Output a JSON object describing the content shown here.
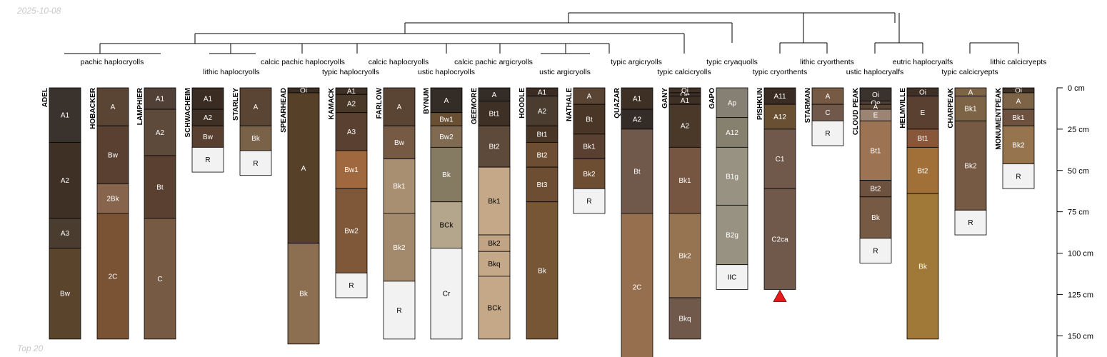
{
  "header": {
    "date": "2025-10-08"
  },
  "footer": {
    "label": "Top 20"
  },
  "dendrogram": {
    "taxa": [
      "pachic haplocryolls",
      "lithic haplocryolls",
      "calcic pachic haplocryolls",
      "typic haplocryolls",
      "calcic haplocryolls",
      "ustic haplocryolls",
      "calcic pachic argicryolls",
      "ustic argicryolls",
      "typic argicryolls",
      "typic calcicryolls",
      "typic cryaquolls",
      "typic cryorthents",
      "lithic cryorthents",
      "ustic haplocryalfs",
      "eutric haplocryalfs",
      "typic calcicryepts",
      "lithic calcicryepts"
    ]
  },
  "axis": {
    "unit": "cm",
    "ticks": [
      "0 cm",
      "25 cm",
      "50 cm",
      "75 cm",
      "100 cm",
      "125 cm",
      "150 cm"
    ],
    "tick_values": [
      0,
      25,
      50,
      75,
      100,
      125,
      150
    ]
  },
  "profiles": [
    {
      "name": "ADEL",
      "horizons": [
        {
          "label": "A1",
          "top": 0,
          "bottom": 33,
          "color": "#3a322c"
        },
        {
          "label": "A2",
          "top": 33,
          "bottom": 79,
          "color": "#3e3024"
        },
        {
          "label": "A3",
          "top": 79,
          "bottom": 97,
          "color": "#4a3c2e"
        },
        {
          "label": "Bw",
          "top": 97,
          "bottom": 152,
          "color": "#5a452c"
        }
      ]
    },
    {
      "name": "HOBACKER",
      "horizons": [
        {
          "label": "A",
          "top": 0,
          "bottom": 23,
          "color": "#5a4434"
        },
        {
          "label": "Bw",
          "top": 23,
          "bottom": 58,
          "color": "#5a4030"
        },
        {
          "label": "2Bk",
          "top": 58,
          "bottom": 76,
          "color": "#86654c"
        },
        {
          "label": "2C",
          "top": 76,
          "bottom": 152,
          "color": "#7a5234"
        }
      ]
    },
    {
      "name": "LAMPHIER",
      "horizons": [
        {
          "label": "A1",
          "top": 0,
          "bottom": 13,
          "color": "#504036"
        },
        {
          "label": "A2",
          "top": 13,
          "bottom": 41,
          "color": "#5e4a3a"
        },
        {
          "label": "Bt",
          "top": 41,
          "bottom": 79,
          "color": "#5a4030"
        },
        {
          "label": "C",
          "top": 79,
          "bottom": 152,
          "color": "#765a44"
        }
      ]
    },
    {
      "name": "SCHWACHEIM",
      "horizons": [
        {
          "label": "A1",
          "top": 0,
          "bottom": 13,
          "color": "#3a2c22"
        },
        {
          "label": "A2",
          "top": 13,
          "bottom": 23,
          "color": "#3e3024"
        },
        {
          "label": "Bw",
          "top": 23,
          "bottom": 36,
          "color": "#5a4030"
        },
        {
          "label": "R",
          "top": 36,
          "bottom": 51,
          "color": "#f2f2f2"
        }
      ]
    },
    {
      "name": "STARLEY",
      "horizons": [
        {
          "label": "A",
          "top": 0,
          "bottom": 23,
          "color": "#5a4434"
        },
        {
          "label": "Bk",
          "top": 23,
          "bottom": 38,
          "color": "#7a6248"
        },
        {
          "label": "R",
          "top": 38,
          "bottom": 53,
          "color": "#f2f2f2"
        }
      ]
    },
    {
      "name": "SPEARHEAD",
      "horizons": [
        {
          "label": "Oi",
          "top": 0,
          "bottom": 3,
          "color": "#3a2c22"
        },
        {
          "label": "A",
          "top": 3,
          "bottom": 94,
          "color": "#564028"
        },
        {
          "label": "Bk",
          "top": 94,
          "bottom": 155,
          "color": "#8c6e50"
        }
      ]
    },
    {
      "name": "KAMACK",
      "horizons": [
        {
          "label": "A1",
          "top": 0,
          "bottom": 4,
          "color": "#3e3024"
        },
        {
          "label": "A2",
          "top": 4,
          "bottom": 15,
          "color": "#4a3828"
        },
        {
          "label": "A3",
          "top": 15,
          "bottom": 38,
          "color": "#5a4030"
        },
        {
          "label": "Bw1",
          "top": 38,
          "bottom": 61,
          "color": "#a0683e"
        },
        {
          "label": "Bw2",
          "top": 61,
          "bottom": 112,
          "color": "#7e5838"
        },
        {
          "label": "R",
          "top": 112,
          "bottom": 127,
          "color": "#f2f2f2"
        }
      ]
    },
    {
      "name": "FARLOW",
      "horizons": [
        {
          "label": "A",
          "top": 0,
          "bottom": 23,
          "color": "#5a4434"
        },
        {
          "label": "Bw",
          "top": 23,
          "bottom": 43,
          "color": "#765a44"
        },
        {
          "label": "Bk1",
          "top": 43,
          "bottom": 76,
          "color": "#a88f72"
        },
        {
          "label": "Bk2",
          "top": 76,
          "bottom": 117,
          "color": "#a48a6c"
        },
        {
          "label": "R",
          "top": 117,
          "bottom": 152,
          "color": "#f2f2f2"
        }
      ]
    },
    {
      "name": "BYNUM",
      "horizons": [
        {
          "label": "A",
          "top": 0,
          "bottom": 15,
          "color": "#342c26"
        },
        {
          "label": "Bw1",
          "top": 15,
          "bottom": 23,
          "color": "#6a5032"
        },
        {
          "label": "Bw2",
          "top": 23,
          "bottom": 36,
          "color": "#806a52"
        },
        {
          "label": "Bk",
          "top": 36,
          "bottom": 69,
          "color": "#857b63"
        },
        {
          "label": "BCk",
          "top": 69,
          "bottom": 97,
          "color": "#b4a68c"
        },
        {
          "label": "Cr",
          "top": 97,
          "bottom": 152,
          "color": "#f2f2f2"
        }
      ]
    },
    {
      "name": "GEEMORE",
      "horizons": [
        {
          "label": "A",
          "top": 0,
          "bottom": 8,
          "color": "#342c26"
        },
        {
          "label": "Bt1",
          "top": 8,
          "bottom": 23,
          "color": "#3e3024"
        },
        {
          "label": "Bt2",
          "top": 23,
          "bottom": 48,
          "color": "#5e4a3a"
        },
        {
          "label": "Bk1",
          "top": 48,
          "bottom": 89,
          "color": "#c4a888"
        },
        {
          "label": "Bk2",
          "top": 89,
          "bottom": 99,
          "color": "#c0a484"
        },
        {
          "label": "Bkq",
          "top": 99,
          "bottom": 114,
          "color": "#c4a888"
        },
        {
          "label": "BCk",
          "top": 114,
          "bottom": 152,
          "color": "#c4a888"
        }
      ]
    },
    {
      "name": "HOODLE",
      "horizons": [
        {
          "label": "A1",
          "top": 0,
          "bottom": 5,
          "color": "#3a2c22"
        },
        {
          "label": "A2",
          "top": 5,
          "bottom": 23,
          "color": "#4a3c2e"
        },
        {
          "label": "Bt1",
          "top": 23,
          "bottom": 33,
          "color": "#4a3626"
        },
        {
          "label": "Bt2",
          "top": 33,
          "bottom": 48,
          "color": "#6e4e32"
        },
        {
          "label": "Bt3",
          "top": 48,
          "bottom": 69,
          "color": "#6e4e32"
        },
        {
          "label": "Bk",
          "top": 69,
          "bottom": 152,
          "color": "#765634"
        }
      ]
    },
    {
      "name": "NATHALE",
      "horizons": [
        {
          "label": "A",
          "top": 0,
          "bottom": 10,
          "color": "#5a4434"
        },
        {
          "label": "Bt",
          "top": 10,
          "bottom": 28,
          "color": "#4a3626"
        },
        {
          "label": "Bk1",
          "top": 28,
          "bottom": 43,
          "color": "#5a4030"
        },
        {
          "label": "Bk2",
          "top": 43,
          "bottom": 61,
          "color": "#6e4e32"
        },
        {
          "label": "R",
          "top": 61,
          "bottom": 76,
          "color": "#f2f2f2"
        }
      ]
    },
    {
      "name": "QUAZAR",
      "horizons": [
        {
          "label": "A1",
          "top": 0,
          "bottom": 13,
          "color": "#3e3024"
        },
        {
          "label": "A2",
          "top": 13,
          "bottom": 25,
          "color": "#342c26"
        },
        {
          "label": "Bt",
          "top": 25,
          "bottom": 76,
          "color": "#70584a"
        },
        {
          "label": "2C",
          "top": 76,
          "bottom": 165,
          "color": "#96704e"
        }
      ]
    },
    {
      "name": "GANY",
      "horizons": [
        {
          "label": "Oi",
          "top": 0,
          "bottom": 3,
          "color": "#3e3024"
        },
        {
          "label": "Oe",
          "top": 3,
          "bottom": 5,
          "color": "#3e3024"
        },
        {
          "label": "A1",
          "top": 5,
          "bottom": 10,
          "color": "#3e3024"
        },
        {
          "label": "A2",
          "top": 10,
          "bottom": 36,
          "color": "#4a3828"
        },
        {
          "label": "Bk1",
          "top": 36,
          "bottom": 76,
          "color": "#765640"
        },
        {
          "label": "Bk2",
          "top": 76,
          "bottom": 127,
          "color": "#967452"
        },
        {
          "label": "Bkq",
          "top": 127,
          "bottom": 152,
          "color": "#70584a"
        }
      ]
    },
    {
      "name": "GAPO",
      "horizons": [
        {
          "label": "Ap",
          "top": 0,
          "bottom": 18,
          "color": "#868074"
        },
        {
          "label": "A12",
          "top": 18,
          "bottom": 36,
          "color": "#86806e"
        },
        {
          "label": "B1g",
          "top": 36,
          "bottom": 71,
          "color": "#989282"
        },
        {
          "label": "B2g",
          "top": 71,
          "bottom": 107,
          "color": "#989282"
        },
        {
          "label": "IIC",
          "top": 107,
          "bottom": 122,
          "color": "#f2f2f2"
        }
      ]
    },
    {
      "name": "PISHKUN",
      "horizons": [
        {
          "label": "A11",
          "top": 0,
          "bottom": 10,
          "color": "#3a2c22"
        },
        {
          "label": "A12",
          "top": 10,
          "bottom": 25,
          "color": "#6a5032"
        },
        {
          "label": "C1",
          "top": 25,
          "bottom": 61,
          "color": "#70584a"
        },
        {
          "label": "C2ca",
          "top": 61,
          "bottom": 122,
          "color": "#70584a"
        }
      ]
    },
    {
      "name": "STARMAN",
      "horizons": [
        {
          "label": "A",
          "top": 0,
          "bottom": 10,
          "color": "#765a44"
        },
        {
          "label": "C",
          "top": 10,
          "bottom": 20,
          "color": "#70584a"
        },
        {
          "label": "R",
          "top": 20,
          "bottom": 35,
          "color": "#f2f2f2"
        }
      ]
    },
    {
      "name": "CLOUD PEAK",
      "horizons": [
        {
          "label": "Oi",
          "top": 0,
          "bottom": 8,
          "color": "#3a322c"
        },
        {
          "label": "Oe",
          "top": 8,
          "bottom": 10,
          "color": "#504036"
        },
        {
          "label": "A",
          "top": 10,
          "bottom": 13,
          "color": "#5a4434"
        },
        {
          "label": "E",
          "top": 13,
          "bottom": 20,
          "color": "#9c8474"
        },
        {
          "label": "Bt1",
          "top": 20,
          "bottom": 56,
          "color": "#9c7454"
        },
        {
          "label": "Bt2",
          "top": 56,
          "bottom": 66,
          "color": "#6e5240"
        },
        {
          "label": "Bk",
          "top": 66,
          "bottom": 91,
          "color": "#765a44"
        },
        {
          "label": "R",
          "top": 91,
          "bottom": 106,
          "color": "#f2f2f2"
        }
      ]
    },
    {
      "name": "HELMVILLE",
      "horizons": [
        {
          "label": "Oi",
          "top": 0,
          "bottom": 5,
          "color": "#3e3024"
        },
        {
          "label": "E",
          "top": 5,
          "bottom": 25,
          "color": "#5a4030"
        },
        {
          "label": "Bt1",
          "top": 25,
          "bottom": 36,
          "color": "#885638"
        },
        {
          "label": "Bt2",
          "top": 36,
          "bottom": 64,
          "color": "#a07038"
        },
        {
          "label": "Bk",
          "top": 64,
          "bottom": 152,
          "color": "#a07838"
        }
      ]
    },
    {
      "name": "CHARPEAK",
      "horizons": [
        {
          "label": "A",
          "top": 0,
          "bottom": 5,
          "color": "#7e6446"
        },
        {
          "label": "Bk1",
          "top": 5,
          "bottom": 20,
          "color": "#7e6446"
        },
        {
          "label": "Bk2",
          "top": 20,
          "bottom": 74,
          "color": "#765a44"
        },
        {
          "label": "R",
          "top": 74,
          "bottom": 89,
          "color": "#f2f2f2"
        }
      ]
    },
    {
      "name": "MONUMENTPEAK",
      "horizons": [
        {
          "label": "Oi",
          "top": 0,
          "bottom": 3,
          "color": "#3e3024"
        },
        {
          "label": "A",
          "top": 3,
          "bottom": 13,
          "color": "#7e6446"
        },
        {
          "label": "Bk1",
          "top": 13,
          "bottom": 23,
          "color": "#6e5240"
        },
        {
          "label": "Bk2",
          "top": 23,
          "bottom": 46,
          "color": "#96744e"
        },
        {
          "label": "R",
          "top": 46,
          "bottom": 61,
          "color": "#f2f2f2"
        }
      ]
    }
  ],
  "markers": [
    {
      "profile": "PISHKUN",
      "depth": 122,
      "color": "#e41a1c",
      "icon": "triangle-icon"
    }
  ]
}
